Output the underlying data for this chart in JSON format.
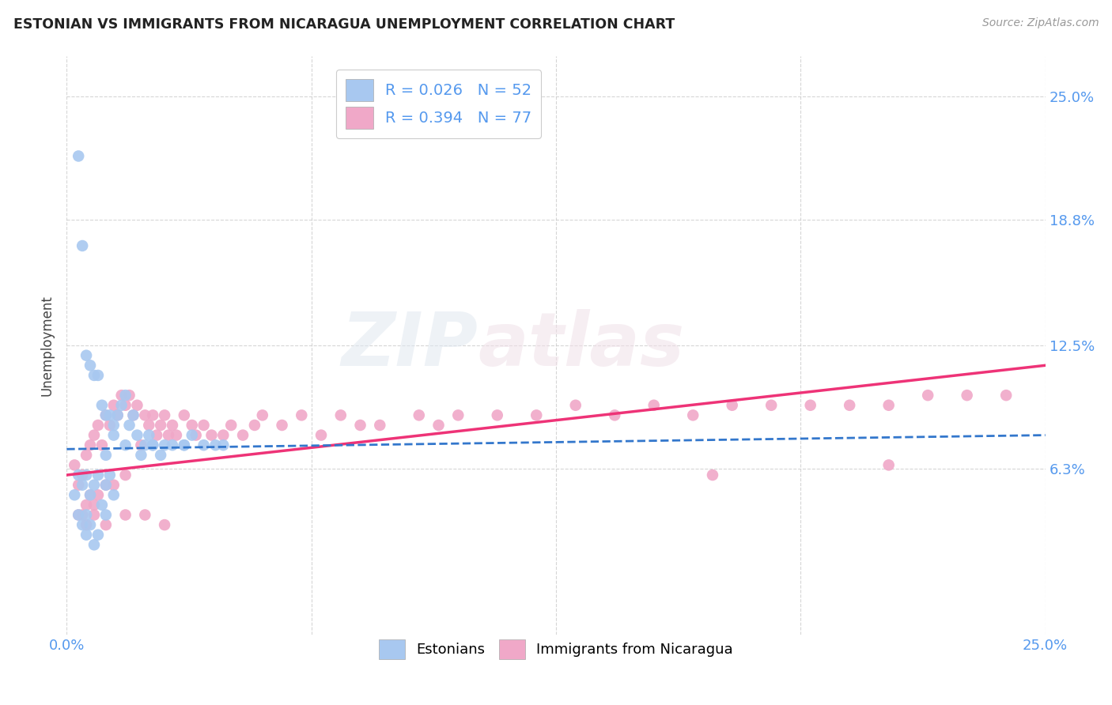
{
  "title": "ESTONIAN VS IMMIGRANTS FROM NICARAGUA UNEMPLOYMENT CORRELATION CHART",
  "source": "Source: ZipAtlas.com",
  "ylabel": "Unemployment",
  "y_tick_labels": [
    "6.3%",
    "12.5%",
    "18.8%",
    "25.0%"
  ],
  "y_tick_values": [
    0.063,
    0.125,
    0.188,
    0.25
  ],
  "xlim": [
    0.0,
    0.25
  ],
  "ylim": [
    -0.02,
    0.27
  ],
  "series1_color": "#a8c8f0",
  "series2_color": "#f0a8c8",
  "trend1_color": "#3377cc",
  "trend2_color": "#ee3377",
  "background_color": "#ffffff",
  "watermark_zip": "ZIP",
  "watermark_atlas": "atlas",
  "legend1_r": "0.026",
  "legend1_n": "52",
  "legend2_r": "0.394",
  "legend2_n": "77",
  "est_x": [
    0.002,
    0.003,
    0.003,
    0.004,
    0.004,
    0.005,
    0.005,
    0.005,
    0.006,
    0.006,
    0.007,
    0.007,
    0.008,
    0.008,
    0.009,
    0.01,
    0.01,
    0.01,
    0.011,
    0.012,
    0.012,
    0.013,
    0.014,
    0.015,
    0.015,
    0.016,
    0.017,
    0.018,
    0.019,
    0.02,
    0.021,
    0.022,
    0.024,
    0.025,
    0.027,
    0.03,
    0.032,
    0.035,
    0.038,
    0.04,
    0.003,
    0.004,
    0.005,
    0.006,
    0.007,
    0.008,
    0.009,
    0.01,
    0.011,
    0.012,
    0.022,
    0.03
  ],
  "est_y": [
    0.05,
    0.06,
    0.04,
    0.055,
    0.035,
    0.06,
    0.04,
    0.03,
    0.05,
    0.035,
    0.055,
    0.025,
    0.06,
    0.03,
    0.045,
    0.07,
    0.055,
    0.04,
    0.06,
    0.08,
    0.05,
    0.09,
    0.095,
    0.1,
    0.075,
    0.085,
    0.09,
    0.08,
    0.07,
    0.075,
    0.08,
    0.075,
    0.07,
    0.075,
    0.075,
    0.075,
    0.08,
    0.075,
    0.075,
    0.075,
    0.22,
    0.175,
    0.12,
    0.115,
    0.11,
    0.11,
    0.095,
    0.09,
    0.09,
    0.085,
    0.075,
    0.075
  ],
  "nic_x": [
    0.002,
    0.003,
    0.004,
    0.004,
    0.005,
    0.005,
    0.006,
    0.006,
    0.007,
    0.007,
    0.008,
    0.008,
    0.009,
    0.01,
    0.01,
    0.011,
    0.012,
    0.012,
    0.013,
    0.014,
    0.015,
    0.015,
    0.016,
    0.017,
    0.018,
    0.019,
    0.02,
    0.021,
    0.022,
    0.023,
    0.024,
    0.025,
    0.026,
    0.027,
    0.028,
    0.03,
    0.032,
    0.033,
    0.035,
    0.037,
    0.04,
    0.042,
    0.045,
    0.048,
    0.05,
    0.055,
    0.06,
    0.065,
    0.07,
    0.075,
    0.08,
    0.09,
    0.095,
    0.1,
    0.11,
    0.12,
    0.13,
    0.14,
    0.15,
    0.16,
    0.17,
    0.18,
    0.19,
    0.2,
    0.21,
    0.22,
    0.23,
    0.24,
    0.003,
    0.005,
    0.007,
    0.01,
    0.015,
    0.02,
    0.025,
    0.165,
    0.21
  ],
  "nic_y": [
    0.065,
    0.055,
    0.06,
    0.04,
    0.07,
    0.045,
    0.075,
    0.05,
    0.08,
    0.045,
    0.085,
    0.05,
    0.075,
    0.09,
    0.055,
    0.085,
    0.095,
    0.055,
    0.09,
    0.1,
    0.095,
    0.06,
    0.1,
    0.09,
    0.095,
    0.075,
    0.09,
    0.085,
    0.09,
    0.08,
    0.085,
    0.09,
    0.08,
    0.085,
    0.08,
    0.09,
    0.085,
    0.08,
    0.085,
    0.08,
    0.08,
    0.085,
    0.08,
    0.085,
    0.09,
    0.085,
    0.09,
    0.08,
    0.09,
    0.085,
    0.085,
    0.09,
    0.085,
    0.09,
    0.09,
    0.09,
    0.095,
    0.09,
    0.095,
    0.09,
    0.095,
    0.095,
    0.095,
    0.095,
    0.095,
    0.1,
    0.1,
    0.1,
    0.04,
    0.035,
    0.04,
    0.035,
    0.04,
    0.04,
    0.035,
    0.06,
    0.065
  ],
  "trend1_x0": 0.0,
  "trend1_x1": 0.25,
  "trend1_y0": 0.073,
  "trend1_y1": 0.08,
  "trend2_x0": 0.0,
  "trend2_x1": 0.25,
  "trend2_y0": 0.06,
  "trend2_y1": 0.115
}
